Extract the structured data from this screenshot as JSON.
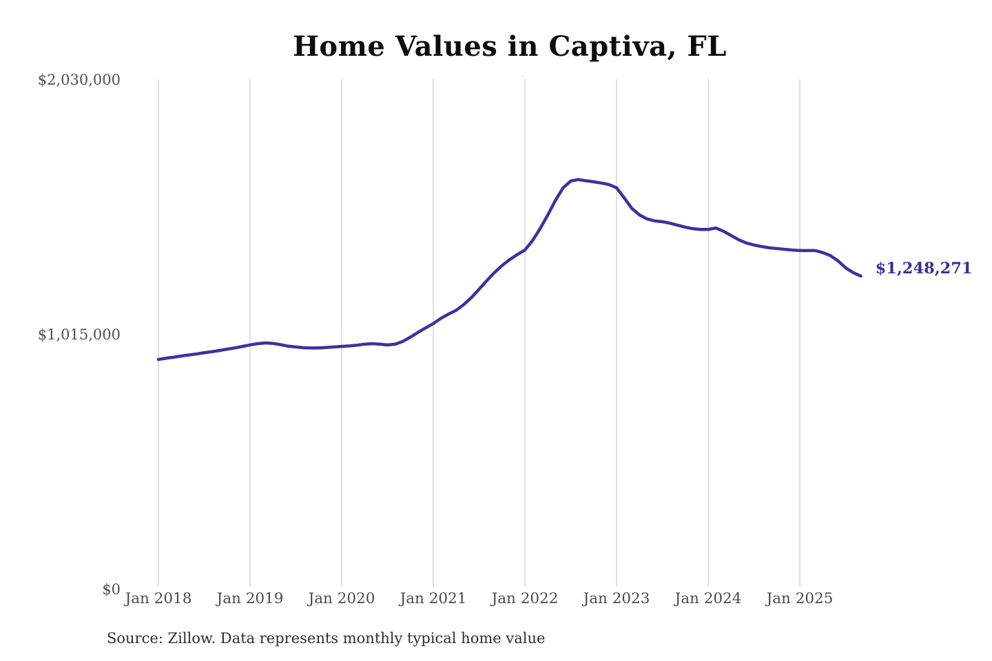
{
  "source_note": "Source: Zillow. Data represents monthly typical home value",
  "colors": {
    "line": "#3b33a0",
    "end_label": "#37309a",
    "grid": "#cbcbcb",
    "axis_text": "#4f4f4f",
    "title_text": "#0d0d0d",
    "background": "#ffffff"
  },
  "chart_data": {
    "type": "line",
    "title": "Home Values in Captiva, FL",
    "xlabel": "",
    "ylabel": "",
    "legend": "none",
    "grid": "vertical-only",
    "ylim": [
      0,
      2030000
    ],
    "y_ticks": [
      {
        "label": "$2,030,000",
        "value": 2030000
      },
      {
        "label": "$1,015,000",
        "value": 1015000
      },
      {
        "label": "$0",
        "value": 0
      }
    ],
    "x_tick_labels": [
      "Jan 2018",
      "Jan 2019",
      "Jan 2020",
      "Jan 2021",
      "Jan 2022",
      "Jan 2023",
      "Jan 2024",
      "Jan 2025"
    ],
    "x_start_month": "2018-01",
    "x_end_month": "2025-09",
    "series": [
      {
        "name": "Monthly typical home value",
        "monthly_values": [
          916000,
          921000,
          925000,
          930000,
          934000,
          938000,
          943000,
          947000,
          952000,
          957000,
          962000,
          968000,
          974000,
          979000,
          982000,
          980000,
          975000,
          969000,
          966000,
          963000,
          962000,
          962000,
          964000,
          966000,
          968000,
          970000,
          973000,
          977000,
          979000,
          977000,
          974000,
          977000,
          988000,
          1005000,
          1024000,
          1042000,
          1059000,
          1080000,
          1097000,
          1112000,
          1135000,
          1163000,
          1196000,
          1230000,
          1262000,
          1290000,
          1314000,
          1334000,
          1352000,
          1390000,
          1438000,
          1492000,
          1550000,
          1600000,
          1627000,
          1633000,
          1628000,
          1624000,
          1619000,
          1613000,
          1600000,
          1560000,
          1518000,
          1492000,
          1476000,
          1468000,
          1465000,
          1459000,
          1451000,
          1443000,
          1437000,
          1434000,
          1434000,
          1440000,
          1427000,
          1410000,
          1393000,
          1380000,
          1372000,
          1366000,
          1361000,
          1358000,
          1355000,
          1352000,
          1350000,
          1350000,
          1350000,
          1342000,
          1330000,
          1309000,
          1281000,
          1262000,
          1248271
        ]
      }
    ],
    "last_point": {
      "date": "2025-09",
      "value": 1248271,
      "label": "$1,248,271"
    }
  }
}
